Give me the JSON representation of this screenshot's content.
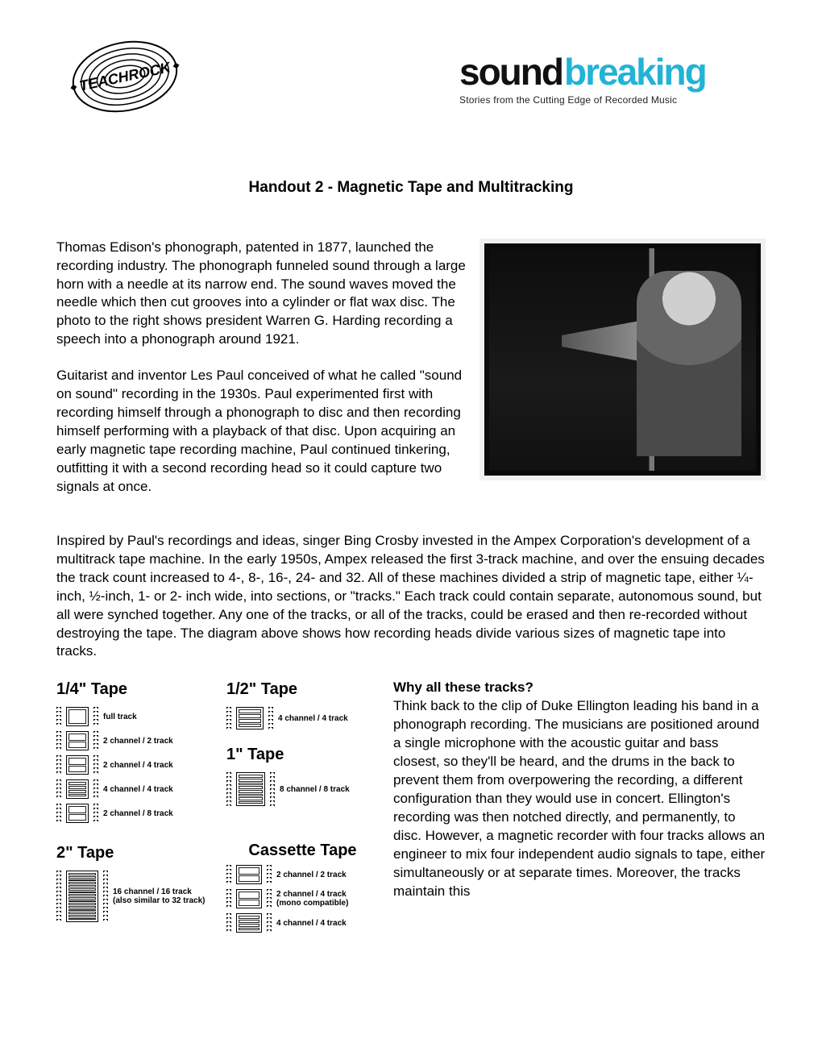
{
  "logos": {
    "left_name": "TEACHROCK.ORG",
    "right_main_a": "sound",
    "right_main_b": "breaking",
    "right_sub": "Stories from the Cutting Edge of Recorded Music"
  },
  "title": "Handout 2 - Magnetic Tape and Multitracking",
  "p1": "Thomas Edison's phonograph, patented in 1877, launched the recording industry. The phonograph funneled sound through a large horn with a needle at its narrow end. The sound waves moved the needle which then cut grooves into a cylinder or flat wax disc. The photo to the right shows president Warren G. Harding recording a speech into a phonograph around 1921.",
  "p2": "Guitarist and inventor Les Paul conceived of what he called \"sound on sound\" recording in the 1930s. Paul experimented first with recording himself through a phonograph to disc and then recording himself performing with a playback of that disc. Upon acquiring an early magnetic tape recording machine, Paul continued tinkering, outfitting it with a second recording head so it could capture two signals at once.",
  "p3": "Inspired by Paul's recordings and ideas, singer Bing Crosby invested in the Ampex Corporation's development of a multitrack tape machine. In the early 1950s, Ampex released the first 3-track machine, and over the ensuing decades the track count increased to 4-, 8-, 16-, 24- and 32. All of these machines divided a strip of magnetic tape, either ¼-inch, ½-inch, 1- or 2- inch wide, into sections, or \"tracks.\" Each track could contain separate, autonomous sound, but all were synched together. Any one of the tracks, or all of the tracks, could be erased and then re-recorded without destroying the tape. The diagram above shows how recording heads divide various sizes of magnetic tape into tracks.",
  "subhead": "Why all these tracks?",
  "p4": "Think back to the clip of Duke Ellington leading his band in a phonograph recording. The musicians are positioned around a single microphone with the acoustic guitar and bass closest, so they'll be heard, and the drums in the back to prevent them from overpowering the recording, a different configuration than they would use in concert. Ellington's recording was then notched directly, and permanently, to disc. However, a magnetic recorder with four tracks allows an engineer to mix four independent audio signals to tape, either simultaneously or at separate times. Moreover, the tracks maintain this",
  "diagram": {
    "quarter": {
      "title": "1/4\"  Tape",
      "rows": [
        {
          "tracks": 1,
          "label": "full track"
        },
        {
          "tracks": 2,
          "label": "2 channel / 2 track"
        },
        {
          "tracks": 2,
          "label": "2 channel / 4 track"
        },
        {
          "tracks": 4,
          "label": "4 channel / 4 track"
        },
        {
          "tracks": 2,
          "label": "2 channel / 8 track"
        }
      ]
    },
    "half": {
      "title": "1/2\"  Tape",
      "rows": [
        {
          "tracks": 4,
          "label": "4 channel / 4 track"
        }
      ]
    },
    "one": {
      "title": "1\"  Tape",
      "rows": [
        {
          "tracks": 8,
          "label": "8  channel / 8 track"
        }
      ]
    },
    "two": {
      "title": "2\"  Tape",
      "rows": [
        {
          "tracks": 16,
          "label": "16 channel / 16 track\n(also similar to 32 track)"
        }
      ]
    },
    "cassette": {
      "title": "Cassette Tape",
      "rows": [
        {
          "tracks": 2,
          "label": "2 channel / 2 track"
        },
        {
          "tracks": 2,
          "label": "2 channel / 4 track\n(mono compatible)"
        },
        {
          "tracks": 4,
          "label": "4 channel / 4 track"
        }
      ]
    }
  },
  "colors": {
    "text": "#000000",
    "bg": "#ffffff",
    "accent": "#22b3d6"
  }
}
